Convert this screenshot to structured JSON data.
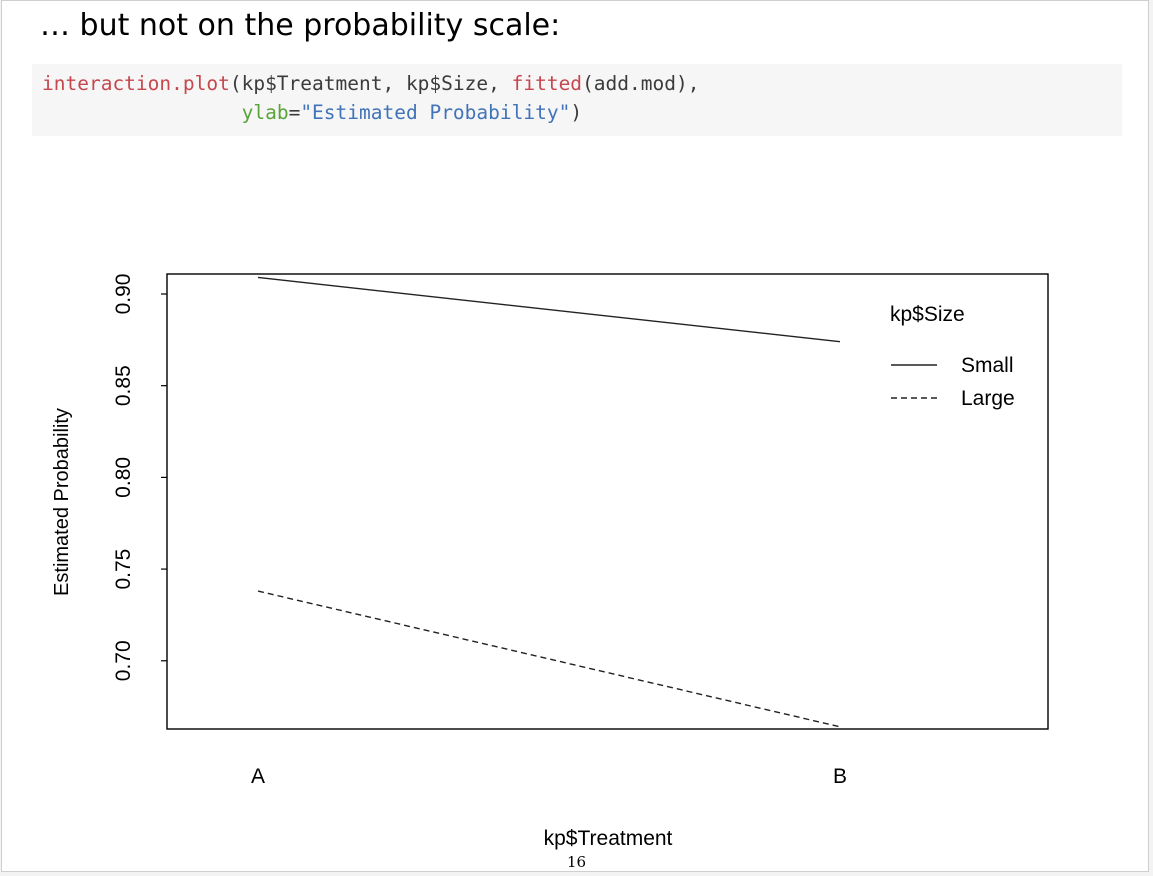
{
  "slide": {
    "title": "… but not on the probability scale:",
    "page_number": "16"
  },
  "code": {
    "line1": [
      {
        "text": "interaction.plot",
        "color": "#c5484f"
      },
      {
        "text": "(kp$Treatment, kp$Size, ",
        "color": "#3b3b3b"
      },
      {
        "text": "fitted",
        "color": "#c5484f"
      },
      {
        "text": "(add.mod),",
        "color": "#3b3b3b"
      }
    ],
    "line2": [
      {
        "text": "                 ",
        "color": "#3b3b3b"
      },
      {
        "text": "ylab",
        "color": "#5aa33a"
      },
      {
        "text": "=",
        "color": "#3b3b3b"
      },
      {
        "text": "\"Estimated Probability\"",
        "color": "#4173b8"
      },
      {
        "text": ")",
        "color": "#3b3b3b"
      }
    ]
  },
  "chart_data": {
    "type": "line",
    "title": "",
    "xlabel": "kp$Treatment",
    "ylabel": "Estimated Probability",
    "categories": [
      "A",
      "B"
    ],
    "yticks": [
      "0.70",
      "0.75",
      "0.80",
      "0.85",
      "0.90"
    ],
    "ylim": [
      0.6628,
      0.9109
    ],
    "legend": {
      "title": "kp$Size",
      "position": "top-right"
    },
    "series": [
      {
        "name": "Small",
        "values": [
          0.909,
          0.874
        ],
        "line_style": "solid"
      },
      {
        "name": "Large",
        "values": [
          0.738,
          0.664
        ],
        "line_style": "dashed"
      }
    ],
    "grid": false
  }
}
